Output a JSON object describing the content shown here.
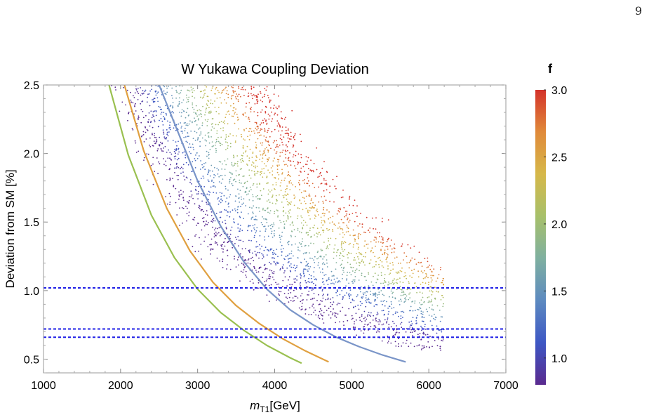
{
  "page": {
    "number": "9"
  },
  "chart_data": {
    "type": "scatter",
    "title": "W Yukawa Coupling Deviation",
    "xlabel": "m",
    "xlabel_sub": "T1",
    "xlabel_unit": "[GeV]",
    "ylabel": "Deviation from SM [%]",
    "xlim": [
      1000,
      7000
    ],
    "ylim": [
      0.4,
      2.5
    ],
    "x_ticks": [
      1000,
      2000,
      3000,
      4000,
      5000,
      6000,
      7000
    ],
    "y_ticks": [
      0.5,
      1.0,
      1.5,
      2.0,
      2.5
    ],
    "x_tick_labels": [
      "1000",
      "2000",
      "3000",
      "4000",
      "5000",
      "6000",
      "7000"
    ],
    "y_tick_labels": [
      "0.5",
      "1.0",
      "1.5",
      "2.0",
      "2.5"
    ],
    "grid": false,
    "colorbar": {
      "title": "f",
      "range": [
        0.8,
        3.0
      ],
      "ticks": [
        1.0,
        1.5,
        2.0,
        2.5,
        3.0
      ],
      "tick_labels": [
        "1.0",
        "1.5",
        "2.0",
        "2.5",
        "3.0"
      ],
      "colormap": [
        "#5a2a8f",
        "#3d57c4",
        "#5d8ac0",
        "#7fb0a0",
        "#a7c06a",
        "#d6b84a",
        "#e08a3a",
        "#d4322a"
      ]
    },
    "reference_lines": [
      {
        "y": 1.02,
        "style": "dashed",
        "color": "#1f1fe6"
      },
      {
        "y": 0.72,
        "style": "dashed",
        "color": "#1f1fe6"
      },
      {
        "y": 0.66,
        "style": "dashed",
        "color": "#1f1fe6"
      }
    ],
    "series": [
      {
        "color": "#7a95c8",
        "x": [
          2500,
          2700,
          3000,
          3300,
          3600,
          3900,
          4200,
          4500,
          4800,
          5100,
          5400,
          5700
        ],
        "y": [
          2.5,
          2.22,
          1.8,
          1.47,
          1.21,
          1.01,
          0.86,
          0.75,
          0.66,
          0.59,
          0.53,
          0.48
        ]
      },
      {
        "color": "#e0a040",
        "x": [
          2050,
          2300,
          2600,
          2900,
          3200,
          3500,
          3800,
          4100,
          4400,
          4700
        ],
        "y": [
          2.5,
          2.02,
          1.6,
          1.29,
          1.06,
          0.89,
          0.76,
          0.65,
          0.56,
          0.48
        ]
      },
      {
        "color": "#9ac050",
        "x": [
          1850,
          2100,
          2400,
          2700,
          3000,
          3300,
          3600,
          3900,
          4200,
          4350
        ],
        "y": [
          2.5,
          1.99,
          1.55,
          1.24,
          1.01,
          0.84,
          0.71,
          0.6,
          0.51,
          0.47
        ]
      }
    ],
    "scatter_band": {
      "min_f": 0.8,
      "max_f": 3.0,
      "x_range": [
        1800,
        6200
      ],
      "y_range": [
        0.47,
        2.5
      ]
    }
  }
}
